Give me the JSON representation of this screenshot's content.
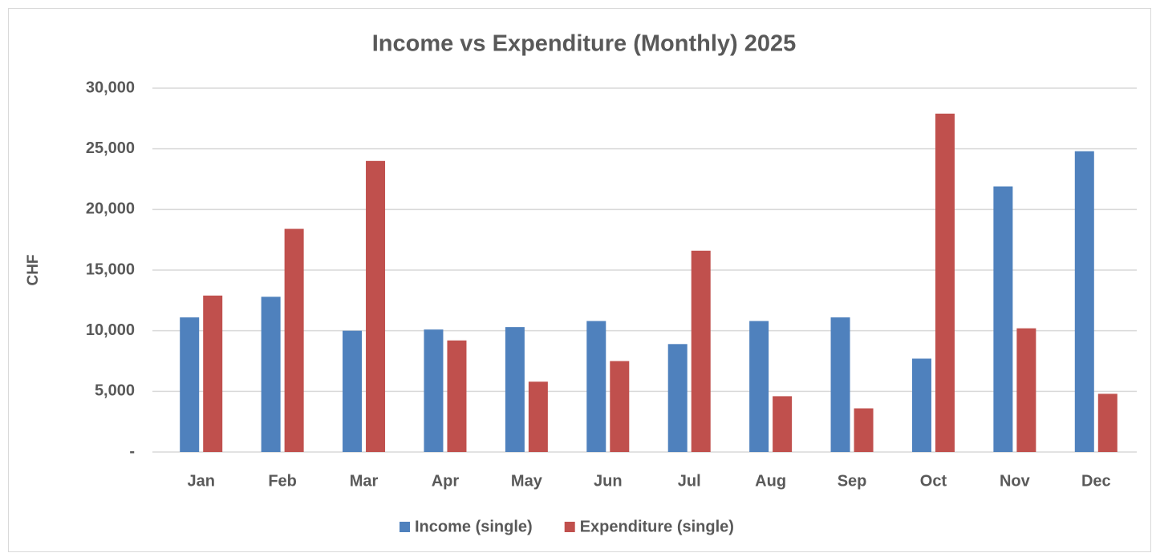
{
  "chart_data": {
    "type": "bar",
    "title": "Income vs Expenditure (Monthly) 2025",
    "ylabel": "CHF",
    "categories": [
      "Jan",
      "Feb",
      "Mar",
      "Apr",
      "May",
      "Jun",
      "Jul",
      "Aug",
      "Sep",
      "Oct",
      "Nov",
      "Dec"
    ],
    "series": [
      {
        "name": "Income (single)",
        "color": "#4f81bd",
        "values": [
          11100,
          12800,
          10000,
          10100,
          10300,
          10800,
          8900,
          10800,
          11100,
          7700,
          21900,
          24800
        ]
      },
      {
        "name": "Expenditure (single)",
        "color": "#c0504d",
        "values": [
          12900,
          18400,
          24000,
          9200,
          5800,
          7500,
          16600,
          4600,
          3600,
          27900,
          10200,
          4800
        ]
      }
    ],
    "ylim": [
      0,
      30000
    ],
    "yticks": [
      {
        "value": 0,
        "label": "-"
      },
      {
        "value": 5000,
        "label": "5,000"
      },
      {
        "value": 10000,
        "label": "10,000"
      },
      {
        "value": 15000,
        "label": "15,000"
      },
      {
        "value": 20000,
        "label": "20,000"
      },
      {
        "value": 25000,
        "label": "25,000"
      },
      {
        "value": 30000,
        "label": "30,000"
      }
    ],
    "grid": true,
    "legend": "bottom"
  }
}
